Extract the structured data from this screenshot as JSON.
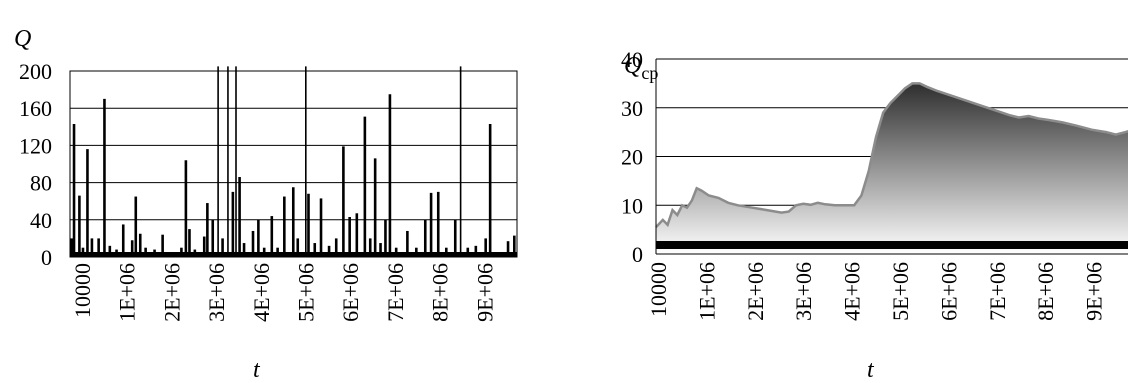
{
  "chart_data": [
    {
      "type": "bar",
      "ylabel": "Q",
      "xlabel": "t",
      "ylim": [
        0,
        200
      ],
      "yticks": [
        "0",
        "40",
        "80",
        "120",
        "160",
        "200"
      ],
      "xtick_labels": [
        "10000",
        "1E+06",
        "2E+06",
        "3E+06",
        "4E+06",
        "5E+06",
        "6E+06",
        "7E+06",
        "8E+06",
        "9E+06"
      ],
      "x": [
        10000,
        10000000
      ],
      "grid": "horizontal",
      "legend": "none",
      "spikes": [
        {
          "x": 50000,
          "y": 20
        },
        {
          "x": 100000,
          "y": 143
        },
        {
          "x": 220000,
          "y": 66
        },
        {
          "x": 300000,
          "y": 10
        },
        {
          "x": 400000,
          "y": 116
        },
        {
          "x": 500000,
          "y": 20
        },
        {
          "x": 650000,
          "y": 20
        },
        {
          "x": 780000,
          "y": 170
        },
        {
          "x": 900000,
          "y": 12
        },
        {
          "x": 1050000,
          "y": 8
        },
        {
          "x": 1200000,
          "y": 35
        },
        {
          "x": 1300000,
          "y": 5
        },
        {
          "x": 1400000,
          "y": 18
        },
        {
          "x": 1480000,
          "y": 65
        },
        {
          "x": 1580000,
          "y": 25
        },
        {
          "x": 1700000,
          "y": 10
        },
        {
          "x": 1900000,
          "y": 8
        },
        {
          "x": 2080000,
          "y": 24
        },
        {
          "x": 2300000,
          "y": 5
        },
        {
          "x": 2500000,
          "y": 10
        },
        {
          "x": 2600000,
          "y": 104
        },
        {
          "x": 2680000,
          "y": 30
        },
        {
          "x": 2800000,
          "y": 8
        },
        {
          "x": 3010000,
          "y": 22
        },
        {
          "x": 3080000,
          "y": 58
        },
        {
          "x": 3200000,
          "y": 40
        },
        {
          "x": 3320000,
          "y": 205
        },
        {
          "x": 3420000,
          "y": 20
        },
        {
          "x": 3540000,
          "y": 205
        },
        {
          "x": 3650000,
          "y": 70
        },
        {
          "x": 3720000,
          "y": 205
        },
        {
          "x": 3800000,
          "y": 86
        },
        {
          "x": 3900000,
          "y": 15
        },
        {
          "x": 4100000,
          "y": 28
        },
        {
          "x": 4220000,
          "y": 40
        },
        {
          "x": 4350000,
          "y": 10
        },
        {
          "x": 4520000,
          "y": 44
        },
        {
          "x": 4650000,
          "y": 10
        },
        {
          "x": 4800000,
          "y": 65
        },
        {
          "x": 5000000,
          "y": 75
        },
        {
          "x": 5100000,
          "y": 20
        },
        {
          "x": 5280000,
          "y": 205
        },
        {
          "x": 5340000,
          "y": 68
        },
        {
          "x": 5480000,
          "y": 15
        },
        {
          "x": 5620000,
          "y": 63
        },
        {
          "x": 5800000,
          "y": 12
        },
        {
          "x": 5960000,
          "y": 20
        },
        {
          "x": 6120000,
          "y": 119
        },
        {
          "x": 6260000,
          "y": 43
        },
        {
          "x": 6420000,
          "y": 47
        },
        {
          "x": 6600000,
          "y": 151
        },
        {
          "x": 6720000,
          "y": 20
        },
        {
          "x": 6830000,
          "y": 106
        },
        {
          "x": 6950000,
          "y": 15
        },
        {
          "x": 7060000,
          "y": 40
        },
        {
          "x": 7160000,
          "y": 175
        },
        {
          "x": 7300000,
          "y": 10
        },
        {
          "x": 7550000,
          "y": 28
        },
        {
          "x": 7750000,
          "y": 10
        },
        {
          "x": 7950000,
          "y": 40
        },
        {
          "x": 8080000,
          "y": 69
        },
        {
          "x": 8240000,
          "y": 70
        },
        {
          "x": 8420000,
          "y": 10
        },
        {
          "x": 8620000,
          "y": 40
        },
        {
          "x": 8740000,
          "y": 205
        },
        {
          "x": 8900000,
          "y": 10
        },
        {
          "x": 9080000,
          "y": 12
        },
        {
          "x": 9300000,
          "y": 20
        },
        {
          "x": 9400000,
          "y": 143
        },
        {
          "x": 9600000,
          "y": 5
        },
        {
          "x": 9800000,
          "y": 17
        },
        {
          "x": 9940000,
          "y": 23
        }
      ]
    },
    {
      "type": "area",
      "ylabel_main": "Q",
      "ylabel_sub": "cp",
      "xlabel": "t",
      "ylim": [
        0,
        40
      ],
      "yticks": [
        "0",
        "10",
        "20",
        "30",
        "40"
      ],
      "xtick_labels": [
        "10000",
        "1E+06",
        "2E+06",
        "3E+06",
        "4E+06",
        "5E+06",
        "6E+06",
        "7E+06",
        "8E+06",
        "9E+06"
      ],
      "x": [
        10000,
        10000000
      ],
      "grid": "horizontal",
      "legend": "none",
      "colors": {
        "fill_top": "#2e2e2e",
        "fill_bottom": "#ffffff",
        "line": "#8c8c8c",
        "base_band": "#000000"
      },
      "points": [
        {
          "x": 10000,
          "y": 5.5
        },
        {
          "x": 150000,
          "y": 7
        },
        {
          "x": 250000,
          "y": 6
        },
        {
          "x": 350000,
          "y": 9
        },
        {
          "x": 450000,
          "y": 8
        },
        {
          "x": 550000,
          "y": 10
        },
        {
          "x": 650000,
          "y": 9.5
        },
        {
          "x": 750000,
          "y": 11
        },
        {
          "x": 850000,
          "y": 13.5
        },
        {
          "x": 950000,
          "y": 13
        },
        {
          "x": 1100000,
          "y": 12
        },
        {
          "x": 1300000,
          "y": 11.5
        },
        {
          "x": 1500000,
          "y": 10.5
        },
        {
          "x": 1700000,
          "y": 10
        },
        {
          "x": 2000000,
          "y": 9.5
        },
        {
          "x": 2300000,
          "y": 9
        },
        {
          "x": 2600000,
          "y": 8.5
        },
        {
          "x": 2750000,
          "y": 8.7
        },
        {
          "x": 2900000,
          "y": 10
        },
        {
          "x": 3050000,
          "y": 10.3
        },
        {
          "x": 3200000,
          "y": 10.1
        },
        {
          "x": 3350000,
          "y": 10.5
        },
        {
          "x": 3500000,
          "y": 10.2
        },
        {
          "x": 3700000,
          "y": 10
        },
        {
          "x": 3900000,
          "y": 10
        },
        {
          "x": 4100000,
          "y": 10
        },
        {
          "x": 4250000,
          "y": 12
        },
        {
          "x": 4400000,
          "y": 17
        },
        {
          "x": 4550000,
          "y": 24
        },
        {
          "x": 4700000,
          "y": 29
        },
        {
          "x": 4850000,
          "y": 31
        },
        {
          "x": 5000000,
          "y": 32.5
        },
        {
          "x": 5150000,
          "y": 34
        },
        {
          "x": 5300000,
          "y": 35
        },
        {
          "x": 5450000,
          "y": 35
        },
        {
          "x": 5600000,
          "y": 34.3
        },
        {
          "x": 5800000,
          "y": 33.5
        },
        {
          "x": 6100000,
          "y": 32.5
        },
        {
          "x": 6400000,
          "y": 31.5
        },
        {
          "x": 6700000,
          "y": 30.5
        },
        {
          "x": 7000000,
          "y": 29.5
        },
        {
          "x": 7300000,
          "y": 28.5
        },
        {
          "x": 7500000,
          "y": 28
        },
        {
          "x": 7700000,
          "y": 28.3
        },
        {
          "x": 7900000,
          "y": 27.8
        },
        {
          "x": 8100000,
          "y": 27.5
        },
        {
          "x": 8400000,
          "y": 27
        },
        {
          "x": 8700000,
          "y": 26.3
        },
        {
          "x": 9000000,
          "y": 25.5
        },
        {
          "x": 9300000,
          "y": 25
        },
        {
          "x": 9500000,
          "y": 24.5
        },
        {
          "x": 9700000,
          "y": 25
        },
        {
          "x": 9850000,
          "y": 25.5
        },
        {
          "x": 10000000,
          "y": 26
        }
      ]
    }
  ]
}
